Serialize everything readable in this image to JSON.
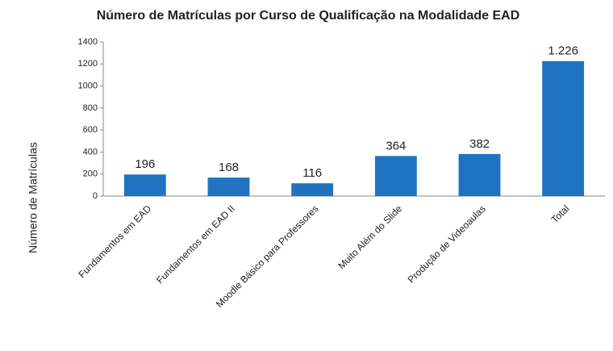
{
  "chart_data": {
    "type": "bar",
    "title": "Número de Matrículas por Curso de Qualificação na Modalidade EAD",
    "y_label": "Número de Matrículas",
    "categories": [
      "Fundamentos em EAD",
      "Fundamentos em EAD II",
      "Moodle Básico para Professores",
      "Muito Além do Slide",
      "Produção de Videoaulas",
      "Total"
    ],
    "values": [
      196,
      168,
      116,
      364,
      382,
      1226
    ],
    "value_labels": [
      "196",
      "168",
      "116",
      "364",
      "382",
      "1.226"
    ],
    "color": "#1f73c0",
    "ylim": [
      0,
      1400
    ],
    "yticks": [
      0,
      200,
      400,
      600,
      800,
      1000,
      1200,
      1400
    ],
    "grid": false
  }
}
